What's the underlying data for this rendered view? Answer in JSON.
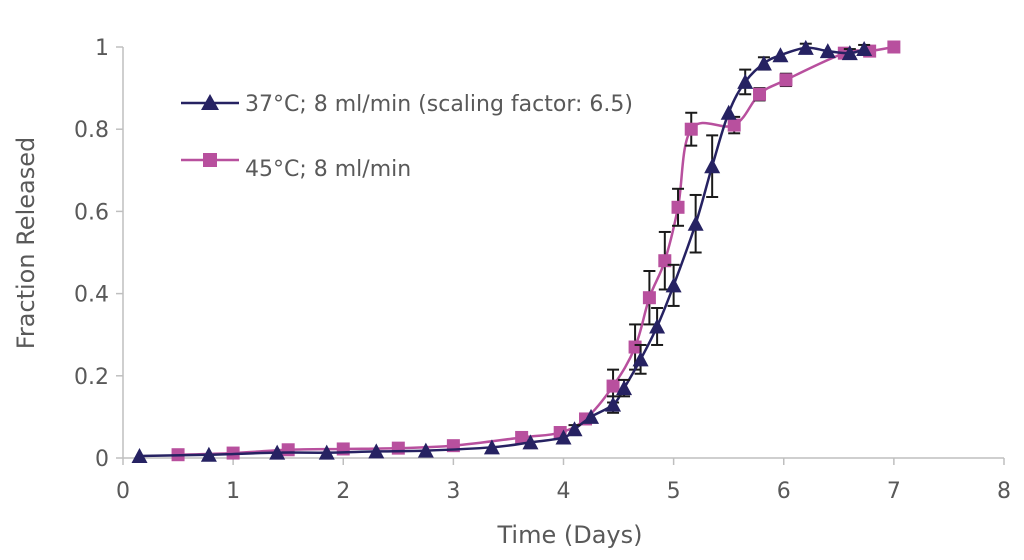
{
  "chart_data": {
    "type": "line",
    "title": "",
    "xlabel": "Time (Days)",
    "ylabel": "Fraction Released",
    "xlim": [
      0,
      8
    ],
    "ylim": [
      0,
      1
    ],
    "xticks": [
      "0",
      "1",
      "2",
      "3",
      "4",
      "5",
      "6",
      "7",
      "8"
    ],
    "yticks": [
      "0",
      "0.2",
      "0.4",
      "0.6",
      "0.8",
      "1"
    ],
    "xtick_values": [
      0,
      1,
      2,
      3,
      4,
      5,
      6,
      7,
      8
    ],
    "ytick_values": [
      0,
      0.2,
      0.4,
      0.6,
      0.8,
      1
    ],
    "grid": false,
    "legend_position": "top-left",
    "series": [
      {
        "name": "37°C; 8 ml/min (scaling factor: 6.5)",
        "color": "#262262",
        "marker": "triangle",
        "x": [
          0.15,
          0.78,
          1.4,
          1.85,
          2.3,
          2.75,
          3.35,
          3.7,
          4.0,
          4.1,
          4.25,
          4.45,
          4.55,
          4.7,
          4.85,
          5.0,
          5.2,
          5.35,
          5.5,
          5.65,
          5.82,
          5.97,
          6.2,
          6.4,
          6.6,
          6.73
        ],
        "y": [
          0.005,
          0.008,
          0.013,
          0.013,
          0.016,
          0.018,
          0.026,
          0.038,
          0.05,
          0.07,
          0.1,
          0.13,
          0.17,
          0.24,
          0.32,
          0.42,
          0.57,
          0.71,
          0.84,
          0.915,
          0.96,
          0.98,
          0.998,
          0.99,
          0.985,
          0.995
        ],
        "err": [
          0,
          0,
          0,
          0,
          0,
          0,
          0,
          0,
          0,
          0.01,
          0,
          0.02,
          0.02,
          0.035,
          0.045,
          0.05,
          0.07,
          0.075,
          0,
          0.03,
          0.015,
          0,
          0.01,
          0,
          0.01,
          0.01
        ]
      },
      {
        "name": "45°C; 8 ml/min",
        "color": "#b8509e",
        "marker": "square",
        "x": [
          0.5,
          1.0,
          1.5,
          2.0,
          2.5,
          3.0,
          3.62,
          3.97,
          4.2,
          4.45,
          4.65,
          4.78,
          4.92,
          5.04,
          5.16,
          5.55,
          5.78,
          6.02,
          6.55,
          6.78,
          7.0
        ],
        "y": [
          0.008,
          0.012,
          0.02,
          0.022,
          0.024,
          0.03,
          0.05,
          0.062,
          0.095,
          0.175,
          0.27,
          0.39,
          0.48,
          0.61,
          0.8,
          0.81,
          0.885,
          0.92,
          0.985,
          0.99,
          1.0
        ],
        "err": [
          0,
          0,
          0,
          0,
          0,
          0,
          0,
          0.005,
          0.01,
          0.04,
          0.055,
          0.065,
          0.07,
          0.045,
          0.04,
          0.02,
          0.015,
          0.015,
          0.005,
          0.005,
          0
        ]
      }
    ]
  }
}
